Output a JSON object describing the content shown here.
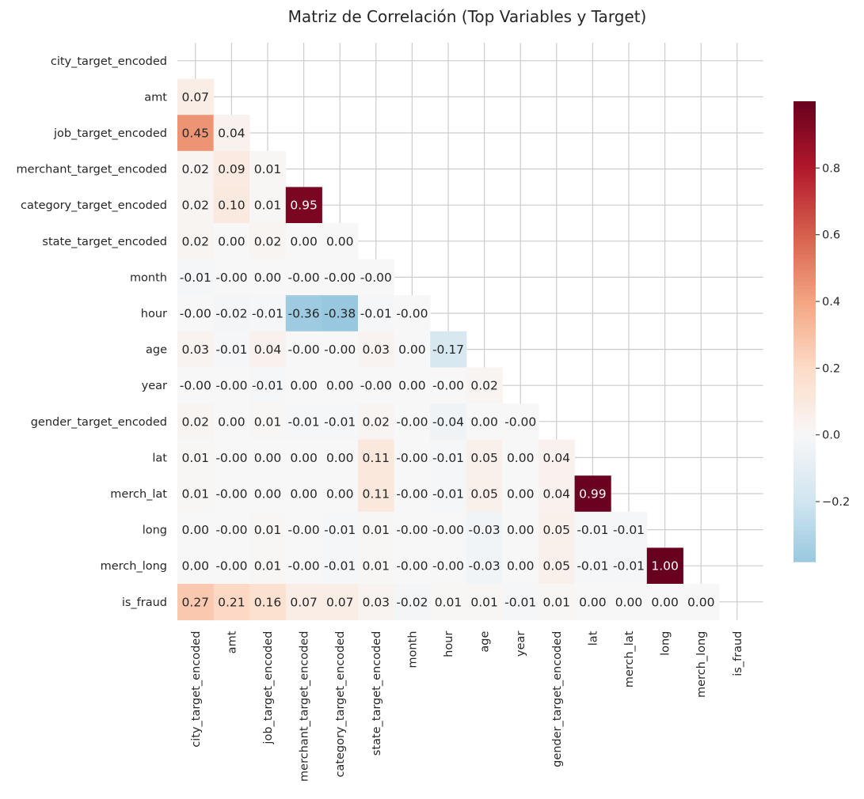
{
  "chart_data": {
    "type": "heatmap",
    "title": "Matriz de Correlación (Top Variables y Target)",
    "mask": "upper-triangle-including-diagonal",
    "variables": [
      "city_target_encoded",
      "amt",
      "job_target_encoded",
      "merchant_target_encoded",
      "category_target_encoded",
      "state_target_encoded",
      "month",
      "hour",
      "age",
      "year",
      "gender_target_encoded",
      "lat",
      "merch_lat",
      "long",
      "merch_long",
      "is_fraud"
    ],
    "labels": [
      [],
      [
        "0.07"
      ],
      [
        "0.45",
        "0.04"
      ],
      [
        "0.02",
        "0.09",
        "0.01"
      ],
      [
        "0.02",
        "0.10",
        "0.01",
        "0.95"
      ],
      [
        "0.02",
        "0.00",
        "0.02",
        "0.00",
        "0.00"
      ],
      [
        "-0.01",
        "-0.00",
        "0.00",
        "-0.00",
        "-0.00",
        "-0.00"
      ],
      [
        "-0.00",
        "-0.02",
        "-0.01",
        "-0.36",
        "-0.38",
        "-0.01",
        "-0.00"
      ],
      [
        "0.03",
        "-0.01",
        "0.04",
        "-0.00",
        "-0.00",
        "0.03",
        "0.00",
        "-0.17"
      ],
      [
        "-0.00",
        "-0.00",
        "-0.01",
        "0.00",
        "0.00",
        "-0.00",
        "0.00",
        "-0.00",
        "0.02"
      ],
      [
        "0.02",
        "0.00",
        "0.01",
        "-0.01",
        "-0.01",
        "0.02",
        "-0.00",
        "-0.04",
        "0.00",
        "-0.00"
      ],
      [
        "0.01",
        "-0.00",
        "0.00",
        "0.00",
        "0.00",
        "0.11",
        "-0.00",
        "-0.01",
        "0.05",
        "0.00",
        "0.04"
      ],
      [
        "0.01",
        "-0.00",
        "0.00",
        "0.00",
        "0.00",
        "0.11",
        "-0.00",
        "-0.01",
        "0.05",
        "0.00",
        "0.04",
        "0.99"
      ],
      [
        "0.00",
        "-0.00",
        "0.01",
        "-0.00",
        "-0.01",
        "0.01",
        "-0.00",
        "-0.00",
        "-0.03",
        "0.00",
        "0.05",
        "-0.01",
        "-0.01"
      ],
      [
        "0.00",
        "-0.00",
        "0.01",
        "-0.00",
        "-0.01",
        "0.01",
        "-0.00",
        "-0.00",
        "-0.03",
        "0.00",
        "0.05",
        "-0.01",
        "-0.01",
        "1.00"
      ],
      [
        "0.27",
        "0.21",
        "0.16",
        "0.07",
        "0.07",
        "0.03",
        "-0.02",
        "0.01",
        "0.01",
        "-0.01",
        "0.01",
        "0.00",
        "0.00",
        "0.00",
        "0.00"
      ]
    ],
    "colorbar": {
      "colormap": "RdBu_r",
      "center": 0,
      "vmin": -0.38,
      "vmax": 1.0,
      "ticks": [
        "−0.2",
        "0.0",
        "0.2",
        "0.4",
        "0.6",
        "0.8"
      ],
      "tick_values": [
        -0.2,
        0.0,
        0.2,
        0.4,
        0.6,
        0.8
      ]
    },
    "grid": true
  }
}
